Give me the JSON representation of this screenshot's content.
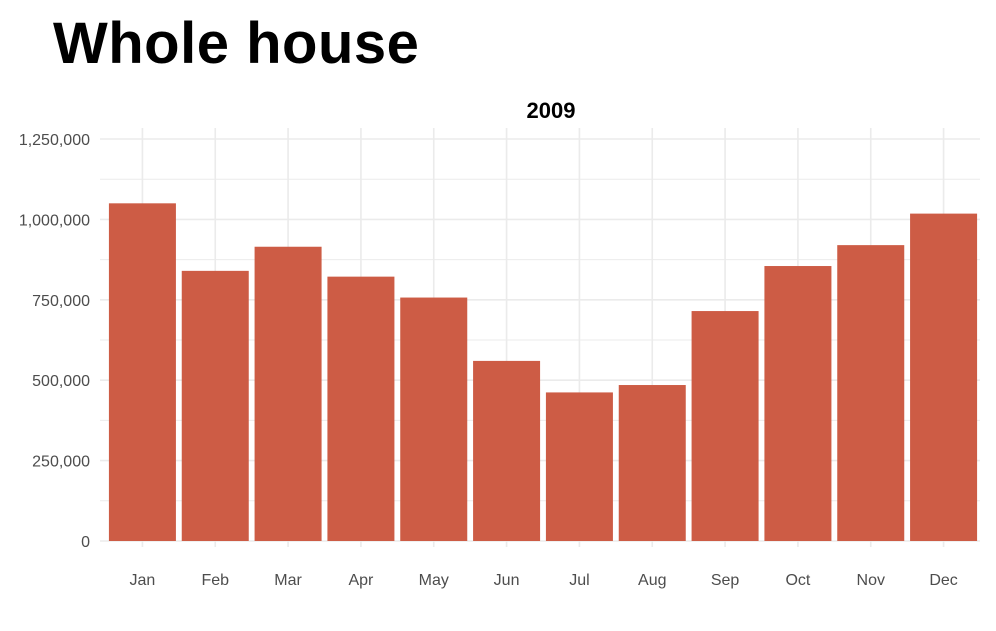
{
  "page": {
    "heading": "Whole house"
  },
  "chart_data": {
    "type": "bar",
    "title": "2009",
    "xlabel": "",
    "ylabel": "",
    "categories": [
      "Jan",
      "Feb",
      "Mar",
      "Apr",
      "May",
      "Jun",
      "Jul",
      "Aug",
      "Sep",
      "Oct",
      "Nov",
      "Dec"
    ],
    "values": [
      1050000,
      840000,
      915000,
      822000,
      757000,
      560000,
      462000,
      485000,
      715000,
      855000,
      920000,
      1018000
    ],
    "ylim": [
      0,
      1250000
    ],
    "yticks": [
      0,
      250000,
      500000,
      750000,
      1000000,
      1250000
    ],
    "ytick_labels": [
      "0",
      "250,000",
      "500,000",
      "750,000",
      "1,000,000",
      "1,250,000"
    ],
    "grid": true,
    "legend": "none",
    "bar_color": "#cd5c45",
    "grid_color": "#ebebeb"
  }
}
